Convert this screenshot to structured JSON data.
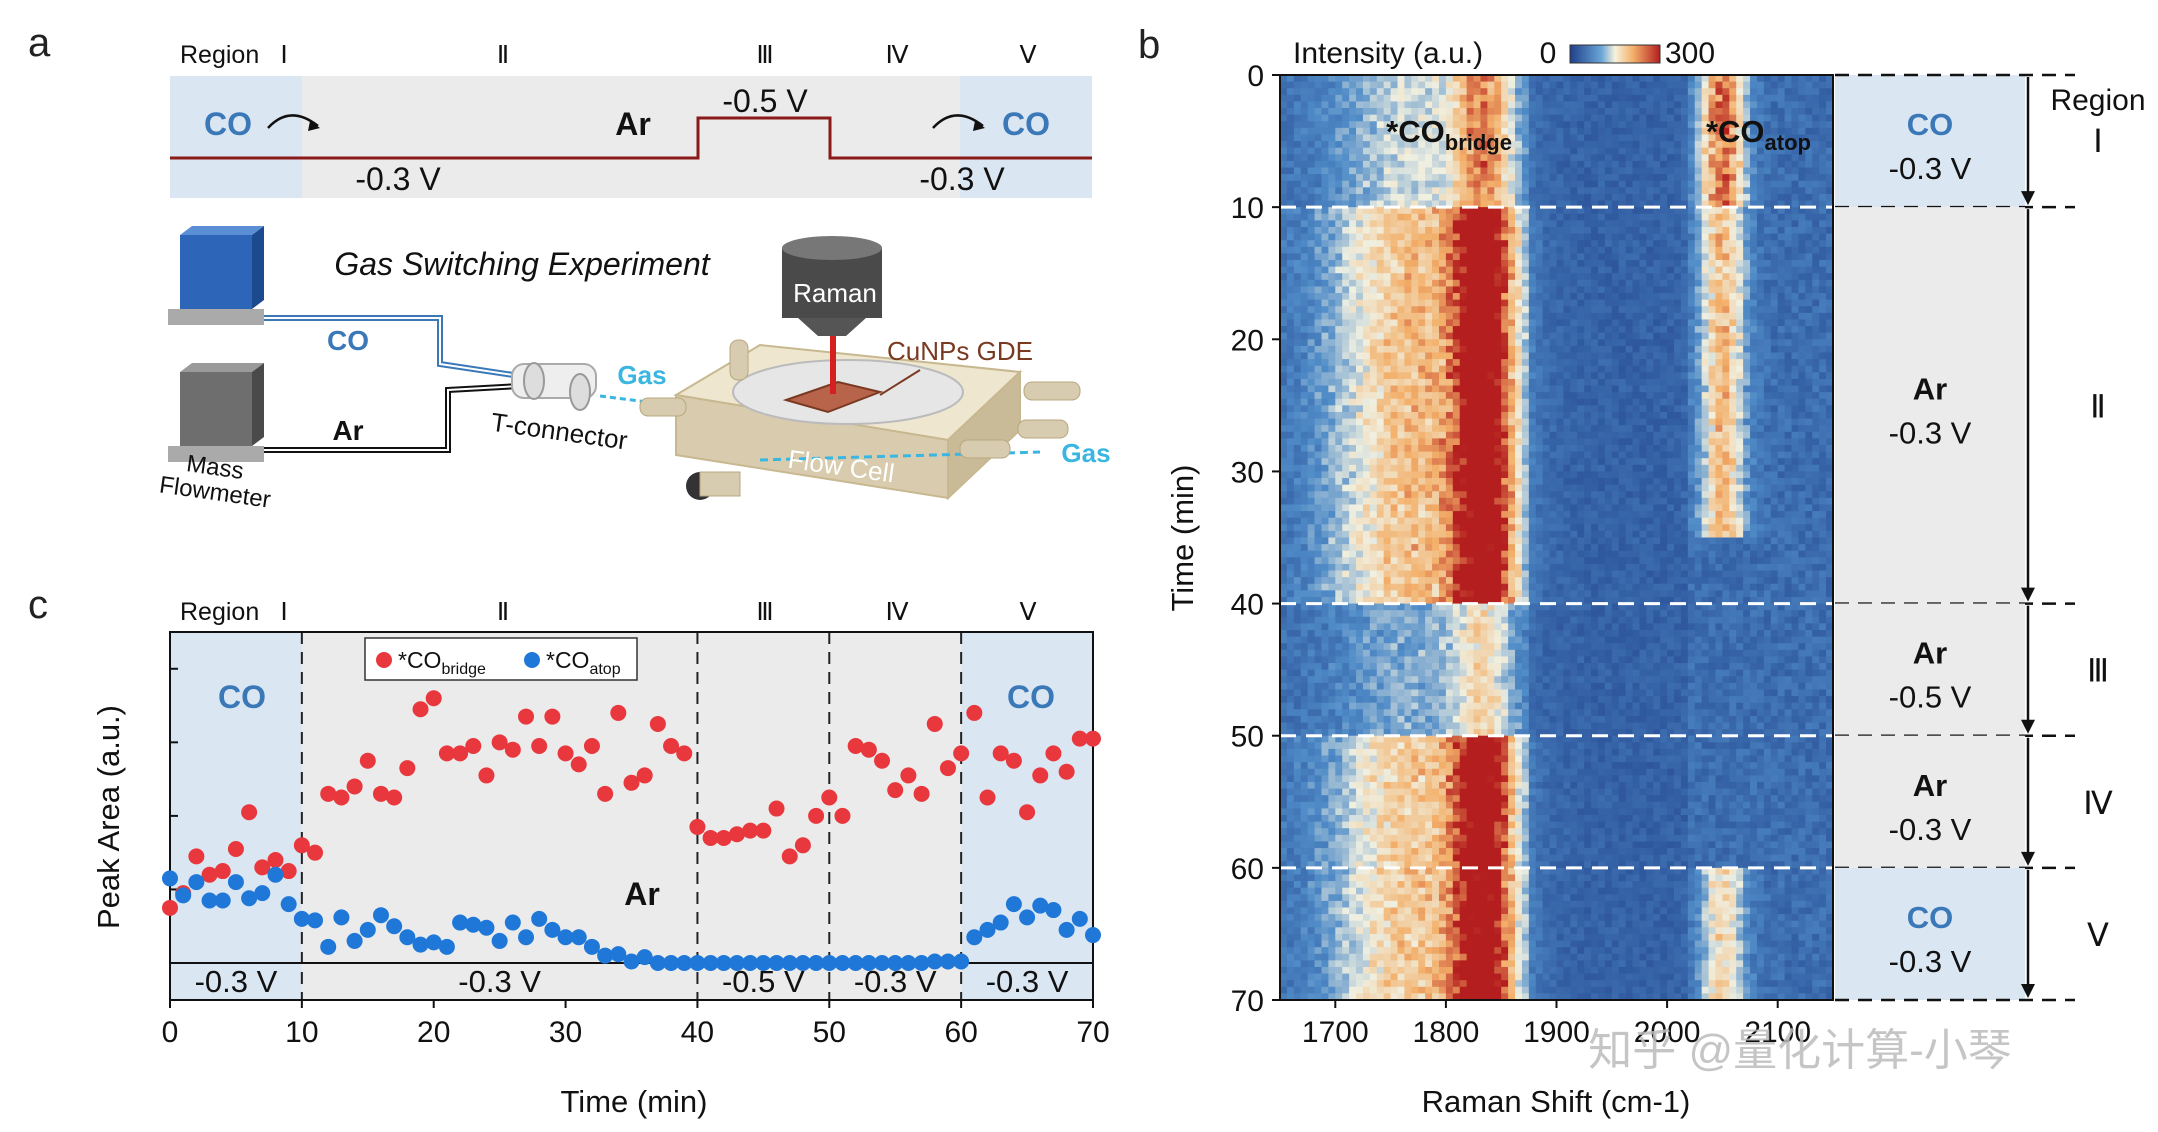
{
  "panel_labels": {
    "a": "a",
    "b": "b",
    "c": "c"
  },
  "panel_a": {
    "region_title": "Region",
    "regions": [
      "Ⅰ",
      "Ⅱ",
      "Ⅲ",
      "Ⅳ",
      "Ⅴ"
    ],
    "gas_labels": {
      "co_left": "CO",
      "ar": "Ar",
      "co_right": "CO"
    },
    "potential_labels": {
      "v1": "-0.3 V",
      "v2": "-0.5 V",
      "v3": "-0.3 V"
    },
    "schematic": {
      "title": "Gas Switching Experiment",
      "co_line": "CO",
      "ar_line": "Ar",
      "flowmeter": "Mass\nFlowmeter",
      "t_connector": "T-connector",
      "raman": "Raman",
      "gde": "CuNPs GDE",
      "flow_cell": "Flow Cell",
      "gas_in": "Gas",
      "gas_out": "Gas"
    }
  },
  "panel_b": {
    "colorbar_title": "Intensity (a.u.)",
    "colorbar_min": "0",
    "colorbar_max": "300",
    "peak_labels": [
      {
        "base": "*CO",
        "sub": "bridge",
        "shift_cm1": 1830
      },
      {
        "base": "*CO",
        "sub": "atop",
        "shift_cm1": 2060
      }
    ],
    "side_labels": [
      {
        "gas": "CO",
        "potential": "-0.3 V"
      },
      {
        "gas": "Ar",
        "potential": "-0.3 V"
      },
      {
        "gas": "Ar",
        "potential": "-0.5 V"
      },
      {
        "gas": "Ar",
        "potential": "-0.3 V"
      },
      {
        "gas": "CO",
        "potential": "-0.3 V"
      }
    ],
    "region_title": "Region",
    "regions": [
      "Ⅰ",
      "Ⅱ",
      "Ⅲ",
      "Ⅳ",
      "Ⅴ"
    ],
    "watermark": "知乎 @量化计算-小琴"
  },
  "panel_c": {
    "region_title": "Region",
    "regions": [
      "Ⅰ",
      "Ⅱ",
      "Ⅲ",
      "Ⅳ",
      "Ⅴ"
    ],
    "inner_labels": {
      "co_left": "CO",
      "ar": "Ar",
      "co_right": "CO"
    },
    "potential_labels": [
      "-0.3 V",
      "-0.3 V",
      "-0.5 V",
      "-0.3 V",
      "-0.3 V"
    ],
    "legend": [
      {
        "base": "*CO",
        "sub": "bridge",
        "color": "#e8383d"
      },
      {
        "base": "*CO",
        "sub": "atop",
        "color": "#1f78d8"
      }
    ]
  },
  "colors": {
    "co_region": "#dbe6f3",
    "ar_region": "#ebebeb",
    "potential_line": "#8b1a1a",
    "co_text": "#3a78b8",
    "bridge": "#e8383d",
    "atop": "#1f78d8"
  },
  "chart_data": [
    {
      "type": "heatmap",
      "title": "",
      "xlabel": "Raman Shift (cm-1)",
      "ylabel": "Time (min)",
      "xlim": [
        1650,
        2150
      ],
      "ylim": [
        0,
        70
      ],
      "xticks": [
        "1700",
        "1800",
        "1900",
        "2000",
        "2100"
      ],
      "yticks": [
        "0",
        "10",
        "20",
        "30",
        "40",
        "50",
        "60",
        "70"
      ],
      "clim": [
        0,
        300
      ],
      "region_boundaries_min": [
        10,
        40,
        50,
        60
      ],
      "features": [
        {
          "name": "*CO bridge",
          "center_cm1": 1830,
          "time_ranges": [
            [
              0,
              10
            ],
            [
              10,
              40
            ],
            [
              50,
              70
            ]
          ]
        },
        {
          "name": "*CO atop",
          "center_cm1": 2060,
          "time_ranges": [
            [
              0,
              10
            ],
            [
              10,
              35
            ],
            [
              60,
              70
            ]
          ]
        }
      ]
    },
    {
      "type": "scatter",
      "title": "",
      "xlabel": "Time (min)",
      "ylabel": "Peak Area (a.u.)",
      "xlim": [
        0,
        70
      ],
      "xticks": [
        "0",
        "10",
        "20",
        "30",
        "40",
        "50",
        "60",
        "70"
      ],
      "ylim": [
        0,
        4.5
      ],
      "region_boundaries_min": [
        10,
        40,
        50,
        60
      ],
      "series": [
        {
          "name": "*CO bridge",
          "x": [
            0,
            1,
            2,
            3,
            4,
            5,
            6,
            7,
            8,
            9,
            10,
            11,
            12,
            13,
            14,
            15,
            16,
            17,
            18,
            19,
            20,
            21,
            22,
            23,
            24,
            25,
            26,
            27,
            28,
            29,
            30,
            31,
            32,
            33,
            34,
            35,
            36,
            37,
            38,
            39,
            40,
            41,
            42,
            43,
            44,
            45,
            46,
            47,
            48,
            49,
            50,
            51,
            52,
            53,
            54,
            55,
            56,
            57,
            58,
            59,
            60,
            61,
            62,
            63,
            64,
            65,
            66,
            67,
            68,
            69,
            70
          ],
          "values": [
            0.75,
            0.95,
            1.45,
            1.2,
            1.25,
            1.55,
            2.05,
            1.3,
            1.4,
            1.25,
            1.6,
            1.5,
            2.3,
            2.25,
            2.4,
            2.75,
            2.3,
            2.25,
            2.65,
            3.45,
            3.6,
            2.85,
            2.85,
            2.95,
            2.55,
            3.0,
            2.9,
            3.35,
            2.95,
            3.35,
            2.85,
            2.7,
            2.95,
            2.3,
            3.4,
            2.45,
            2.55,
            3.25,
            2.95,
            2.85,
            1.85,
            1.7,
            1.7,
            1.75,
            1.8,
            1.8,
            2.1,
            1.45,
            1.6,
            2.0,
            2.25,
            2.0,
            2.95,
            2.9,
            2.75,
            2.35,
            2.55,
            2.3,
            3.25,
            2.65,
            2.85,
            3.4,
            2.25,
            2.85,
            2.75,
            2.05,
            2.55,
            2.85,
            2.6,
            3.05,
            3.05
          ]
        },
        {
          "name": "*CO atop",
          "x": [
            0,
            1,
            2,
            3,
            4,
            5,
            6,
            7,
            8,
            9,
            10,
            11,
            12,
            13,
            14,
            15,
            16,
            17,
            18,
            19,
            20,
            21,
            22,
            23,
            24,
            25,
            26,
            27,
            28,
            29,
            30,
            31,
            32,
            33,
            34,
            35,
            36,
            37,
            38,
            39,
            40,
            41,
            42,
            43,
            44,
            45,
            46,
            47,
            48,
            49,
            50,
            51,
            52,
            53,
            54,
            55,
            56,
            57,
            58,
            59,
            60,
            61,
            62,
            63,
            64,
            65,
            66,
            67,
            68,
            69,
            70
          ],
          "values": [
            1.15,
            0.92,
            1.1,
            0.85,
            0.85,
            1.1,
            0.88,
            0.95,
            1.2,
            0.8,
            0.6,
            0.58,
            0.22,
            0.62,
            0.3,
            0.45,
            0.65,
            0.5,
            0.35,
            0.25,
            0.28,
            0.22,
            0.55,
            0.52,
            0.48,
            0.3,
            0.55,
            0.35,
            0.6,
            0.45,
            0.35,
            0.35,
            0.22,
            0.1,
            0.12,
            0.02,
            0.08,
            0.0,
            0.0,
            0.0,
            0.0,
            0.0,
            0.0,
            0.0,
            0.0,
            0.0,
            0.0,
            0.0,
            0.0,
            0.0,
            0.0,
            0.0,
            0.0,
            0.0,
            0.0,
            0.0,
            0.0,
            0.0,
            0.02,
            0.02,
            0.02,
            0.35,
            0.45,
            0.55,
            0.8,
            0.62,
            0.78,
            0.72,
            0.45,
            0.6,
            0.38
          ]
        }
      ]
    }
  ]
}
